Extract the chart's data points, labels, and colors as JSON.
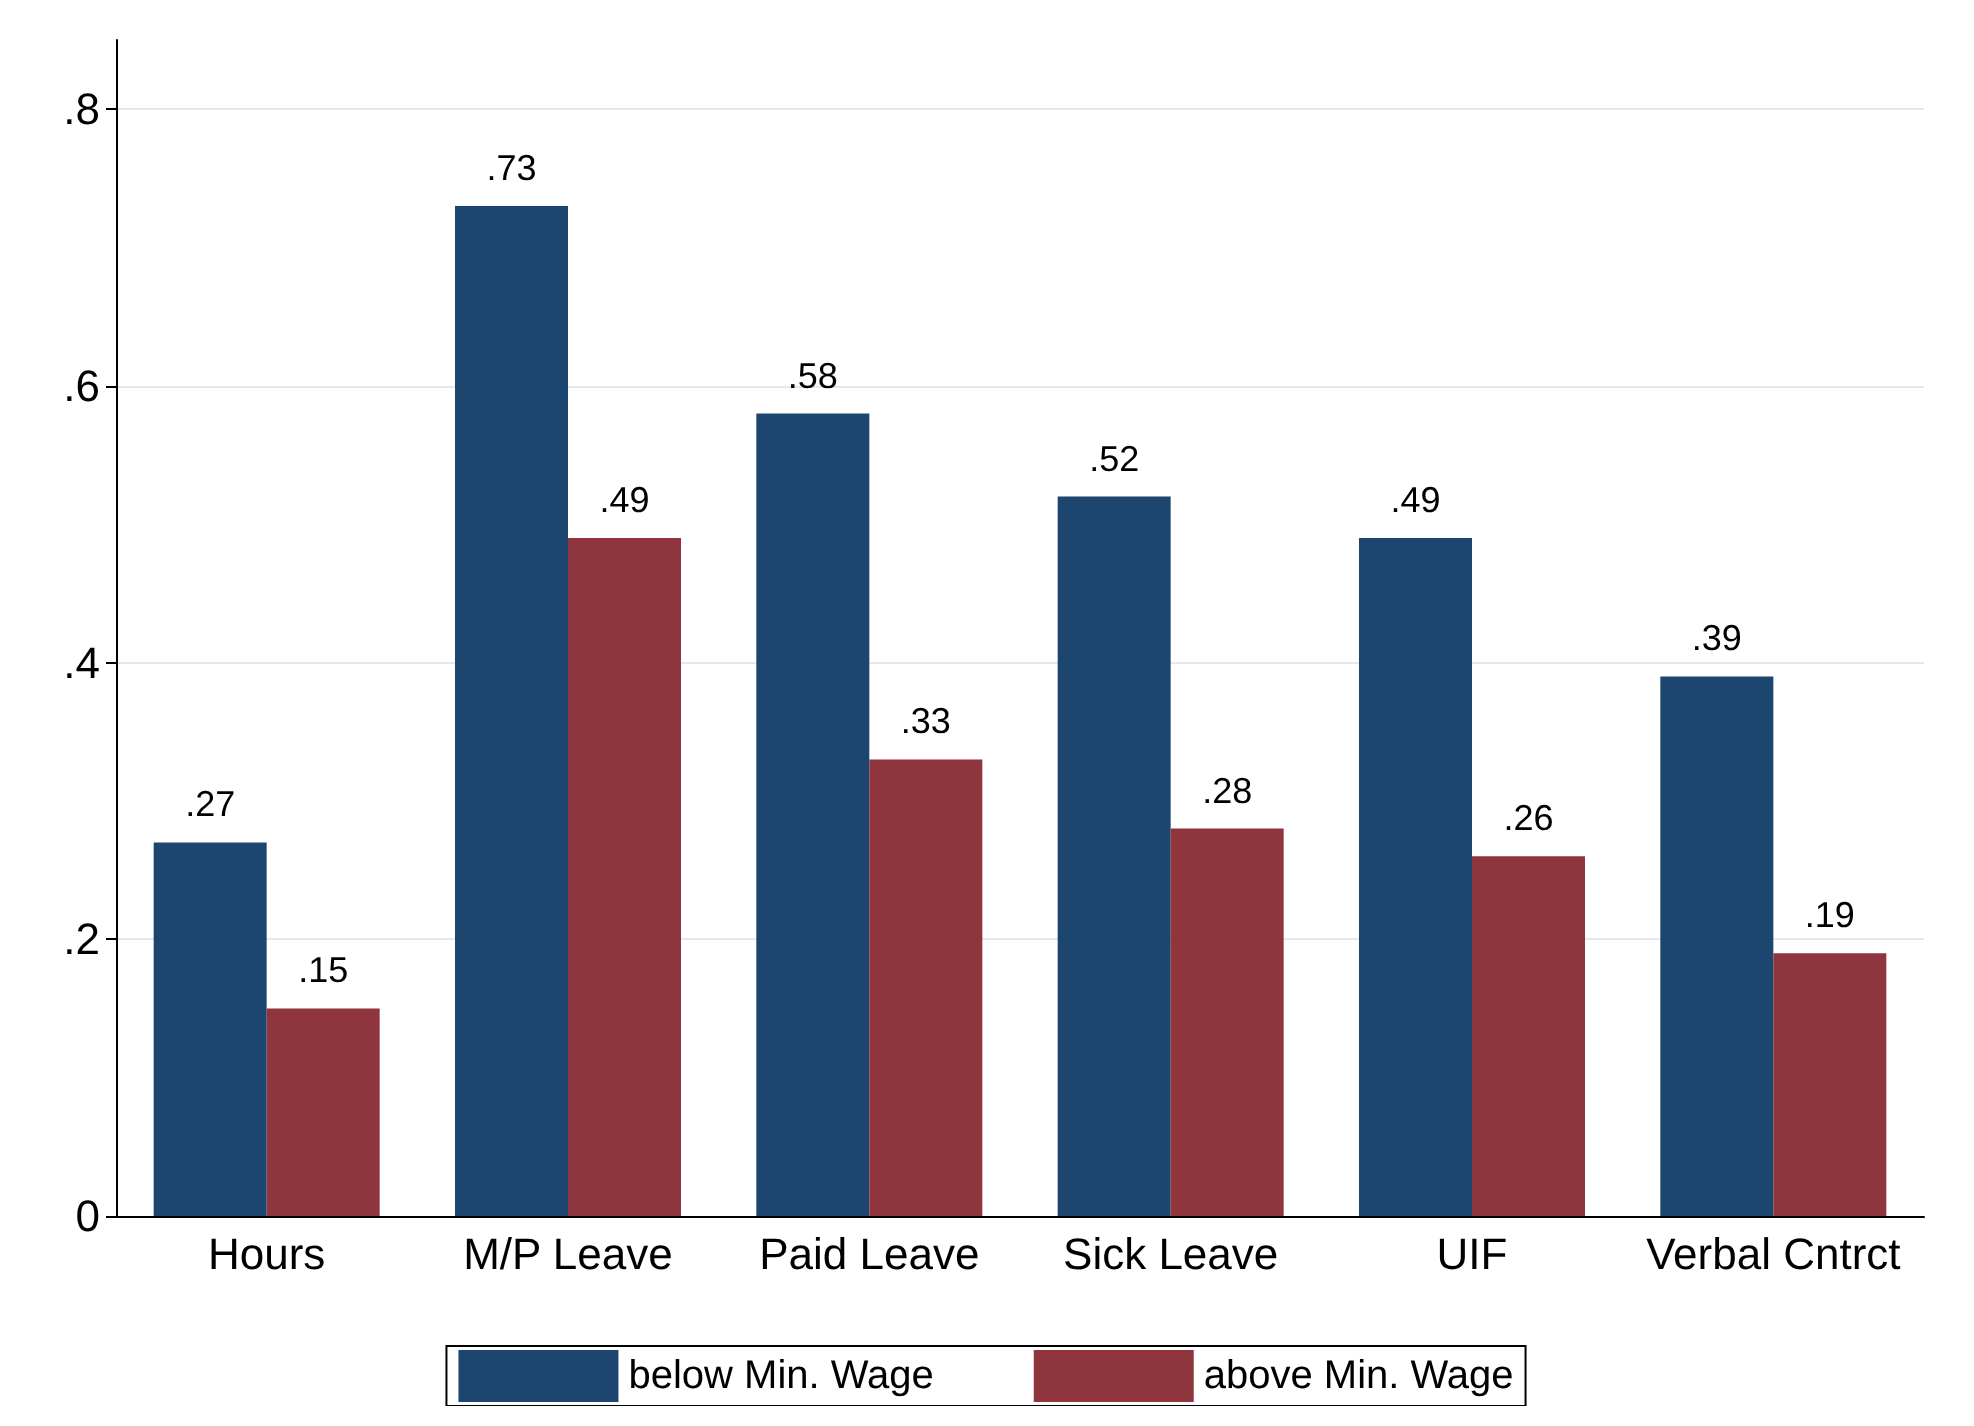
{
  "chart_data": {
    "type": "bar",
    "categories": [
      "Hours",
      "M/P Leave",
      "Paid Leave",
      "Sick Leave",
      "UIF",
      "Verbal Cntrct"
    ],
    "series": [
      {
        "name": "below Min. Wage",
        "color": "#1c4670",
        "values": [
          0.27,
          0.73,
          0.58,
          0.52,
          0.49,
          0.39
        ],
        "value_labels": [
          ".27",
          ".73",
          ".58",
          ".52",
          ".49",
          ".39"
        ]
      },
      {
        "name": "above Min. Wage",
        "color": "#8f353d",
        "values": [
          0.15,
          0.49,
          0.33,
          0.28,
          0.26,
          0.19
        ],
        "value_labels": [
          ".15",
          ".49",
          ".33",
          ".28",
          ".26",
          ".19"
        ]
      }
    ],
    "ylim": [
      0,
      0.85
    ],
    "yticks": [
      0,
      {
        "value": 0.2,
        "label": ".2"
      },
      {
        "value": 0.4,
        "label": ".4"
      },
      {
        "value": 0.6,
        "label": ".6"
      },
      {
        "value": 0.8,
        "label": ".8"
      }
    ],
    "grid": "y",
    "legend": "bottom"
  }
}
